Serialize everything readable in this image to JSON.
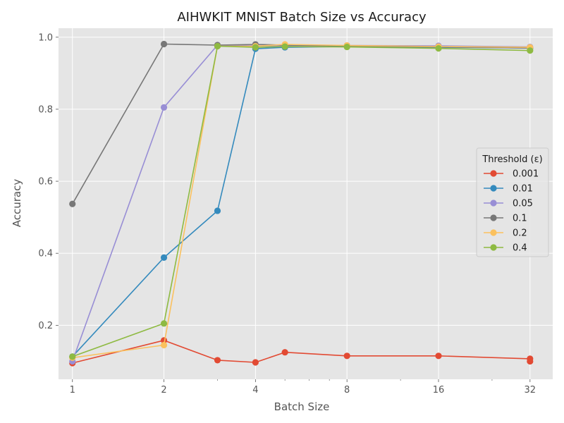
{
  "chart_data": {
    "type": "line",
    "title": "AIHWKIT MNIST Batch Size vs Accuracy",
    "xlabel": "Batch Size",
    "ylabel": "Accuracy",
    "x_scale": "log2",
    "xlim": [
      0.9,
      38
    ],
    "ylim": [
      0.05,
      1.025
    ],
    "x_ticks": [
      1,
      2,
      4,
      8,
      16,
      32
    ],
    "x_tick_labels": [
      "1",
      "2",
      "4",
      "8",
      "16",
      "32"
    ],
    "y_ticks": [
      0.2,
      0.4,
      0.6,
      0.8,
      1.0
    ],
    "y_tick_labels": [
      "0.2",
      "0.4",
      "0.6",
      "0.8",
      "1.0"
    ],
    "grid": true,
    "legend": {
      "title": "Threshold (ε)",
      "placement": "center-right"
    },
    "series": [
      {
        "name": "0.001",
        "color": "#E24A33",
        "x": [
          1,
          2,
          3,
          4,
          5,
          8,
          16,
          32,
          32
        ],
        "y": [
          0.095,
          0.158,
          0.103,
          0.097,
          0.125,
          0.115,
          0.115,
          0.107,
          0.1
        ]
      },
      {
        "name": "0.01",
        "color": "#348ABD",
        "x": [
          1,
          2,
          3,
          4,
          5,
          8,
          16,
          32
        ],
        "y": [
          0.113,
          0.388,
          0.518,
          0.968,
          0.972,
          0.974,
          0.972,
          0.97
        ]
      },
      {
        "name": "0.05",
        "color": "#988ED5",
        "x": [
          1,
          2,
          3,
          4,
          5,
          8,
          16,
          32
        ],
        "y": [
          0.1,
          0.805,
          0.978,
          0.976,
          0.976,
          0.977,
          0.976,
          0.973
        ]
      },
      {
        "name": "0.1",
        "color": "#777777",
        "x": [
          1,
          2,
          3,
          4,
          5,
          8,
          16,
          32
        ],
        "y": [
          0.537,
          0.981,
          0.978,
          0.98,
          0.978,
          0.976,
          0.973,
          0.97
        ]
      },
      {
        "name": "0.2",
        "color": "#FBC15E",
        "x": [
          1,
          2,
          3,
          4,
          5,
          8,
          16,
          32
        ],
        "y": [
          0.11,
          0.145,
          0.975,
          0.975,
          0.98,
          0.977,
          0.974,
          0.972
        ]
      },
      {
        "name": "0.4",
        "color": "#8EBA42",
        "x": [
          1,
          2,
          3,
          4,
          5,
          8,
          16,
          32
        ],
        "y": [
          0.113,
          0.205,
          0.975,
          0.972,
          0.974,
          0.973,
          0.969,
          0.963
        ]
      }
    ]
  },
  "colors": {
    "plot_background": "#E5E5E5",
    "grid": "#FFFFFF",
    "figure_background": "#FFFFFF"
  }
}
